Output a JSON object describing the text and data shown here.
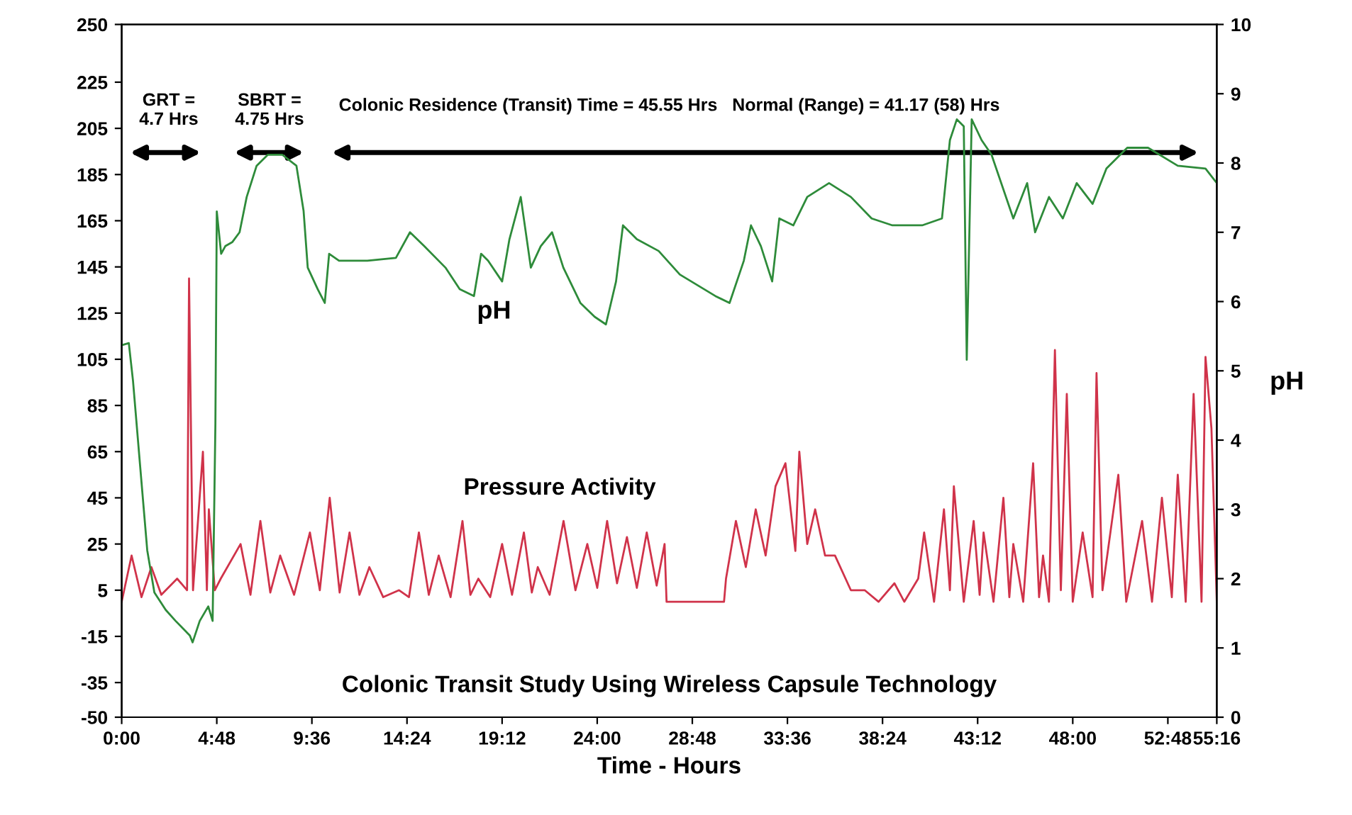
{
  "chart_data": {
    "type": "line",
    "xlabel": "Time - Hours",
    "y2label": "pH",
    "xlim": [
      0,
      55.27
    ],
    "ylim": [
      -50,
      250
    ],
    "y2lim": [
      0,
      10
    ],
    "xticks": [
      {
        "value": 0,
        "label": "0:00"
      },
      {
        "value": 4.8,
        "label": "4:48"
      },
      {
        "value": 9.6,
        "label": "9:36"
      },
      {
        "value": 14.4,
        "label": "14:24"
      },
      {
        "value": 19.2,
        "label": "19:12"
      },
      {
        "value": 24,
        "label": "24:00"
      },
      {
        "value": 28.8,
        "label": "28:48"
      },
      {
        "value": 33.6,
        "label": "33:36"
      },
      {
        "value": 38.4,
        "label": "38:24"
      },
      {
        "value": 43.2,
        "label": "43:12"
      },
      {
        "value": 48,
        "label": "48:00"
      },
      {
        "value": 52.8,
        "label": "52:48"
      },
      {
        "value": 55.27,
        "label": "55:16"
      }
    ],
    "yticks": [
      250,
      225,
      205,
      185,
      165,
      145,
      125,
      105,
      85,
      65,
      45,
      25,
      5,
      -15,
      -35,
      -50
    ],
    "y2ticks": [
      0,
      1,
      2,
      3,
      4,
      5,
      6,
      7,
      8,
      9,
      10
    ],
    "grid": false,
    "legend": false,
    "series": [
      {
        "color": "#d0334a",
        "axis": "y",
        "x": [
          0,
          0.5,
          1,
          1.5,
          2,
          2.8,
          3.3,
          3.4,
          3.6,
          4.1,
          4.3,
          4.4,
          4.7,
          5,
          6,
          6.5,
          7,
          7.5,
          8,
          8.7,
          9.5,
          10,
          10.5,
          11,
          11.5,
          12,
          12.5,
          13.2,
          14,
          14.5,
          15,
          15.5,
          16,
          16.6,
          17.2,
          17.6,
          18,
          18.6,
          19.2,
          19.7,
          20.3,
          20.7,
          21,
          21.6,
          22.3,
          22.9,
          23.5,
          24,
          24.5,
          25,
          25.5,
          26,
          26.5,
          27,
          27.4,
          27.5,
          30.4,
          30.5,
          31,
          31.5,
          32,
          32.5,
          33,
          33.5,
          34,
          34.2,
          34.6,
          35,
          35.5,
          36,
          36.8,
          37.5,
          38.2,
          39,
          39.5,
          40.2,
          40.5,
          41,
          41.5,
          41.8,
          42,
          42.5,
          43,
          43.3,
          43.5,
          44,
          44.5,
          44.8,
          45,
          45.5,
          46,
          46.3,
          46.5,
          46.8,
          47.1,
          47.4,
          47.7,
          48,
          48.5,
          49,
          49.2,
          49.5,
          50.3,
          50.7,
          51.5,
          52,
          52.5,
          53,
          53.3,
          53.7,
          54.1,
          54.5,
          54.7,
          55,
          55.27
        ],
        "values": [
          0,
          20,
          2,
          15,
          3,
          10,
          5,
          140,
          5,
          65,
          5,
          40,
          5,
          10,
          25,
          3,
          35,
          4,
          20,
          3,
          30,
          5,
          45,
          4,
          30,
          3,
          15,
          2,
          5,
          2,
          30,
          3,
          20,
          2,
          35,
          3,
          10,
          2,
          25,
          3,
          30,
          4,
          15,
          3,
          35,
          5,
          25,
          6,
          35,
          8,
          28,
          6,
          30,
          7,
          25,
          0,
          0,
          10,
          35,
          15,
          40,
          20,
          50,
          60,
          22,
          65,
          25,
          40,
          20,
          20,
          5,
          5,
          0,
          8,
          0,
          10,
          30,
          0,
          40,
          5,
          50,
          0,
          35,
          3,
          30,
          0,
          45,
          2,
          25,
          0,
          60,
          2,
          20,
          0,
          109,
          5,
          90,
          0,
          30,
          2,
          99,
          5,
          55,
          0,
          35,
          0,
          45,
          2,
          55,
          0,
          90,
          0,
          106,
          75,
          0
        ]
      },
      {
        "color": "#2e8b3a",
        "axis": "y2",
        "x": [
          0,
          0.36,
          0.57,
          0.93,
          1.29,
          1.65,
          2.22,
          2.72,
          3.44,
          3.58,
          3.94,
          4.37,
          4.59,
          4.73,
          4.8,
          5.02,
          5.23,
          5.59,
          5.95,
          6.31,
          6.81,
          7.38,
          8.1,
          8.82,
          9.18,
          9.39,
          9.89,
          10.25,
          10.47,
          10.97,
          12.4,
          13.84,
          14.55,
          15.27,
          16.34,
          17.06,
          17.78,
          18.14,
          18.49,
          19.2,
          19.57,
          20.14,
          20.65,
          21.15,
          21.72,
          22.29,
          23.15,
          23.87,
          24.44,
          24.95,
          25.3,
          26.0,
          27.1,
          28.17,
          29.96,
          30.68,
          31.4,
          31.76,
          32.26,
          32.83,
          33.19,
          33.9,
          34.6,
          35.7,
          36.8,
          37.85,
          38.9,
          40.4,
          41.4,
          41.8,
          42.15,
          42.5,
          42.65,
          42.9,
          43.4,
          43.9,
          45.0,
          45.7,
          46.1,
          46.8,
          47.5,
          48.2,
          49.0,
          49.7,
          50.75,
          51.8,
          53.3,
          54.7,
          55.27
        ],
        "values": [
          5.37,
          5.4,
          4.86,
          3.63,
          2.41,
          1.8,
          1.55,
          1.39,
          1.18,
          1.08,
          1.39,
          1.6,
          1.39,
          4.24,
          7.3,
          6.69,
          6.8,
          6.86,
          7.0,
          7.51,
          7.96,
          8.12,
          8.12,
          7.96,
          7.31,
          6.49,
          6.18,
          5.98,
          6.69,
          6.59,
          6.59,
          6.63,
          7.0,
          6.8,
          6.49,
          6.18,
          6.08,
          6.69,
          6.59,
          6.29,
          6.9,
          7.51,
          6.49,
          6.8,
          7.0,
          6.49,
          5.98,
          5.78,
          5.67,
          6.29,
          7.1,
          6.9,
          6.73,
          6.39,
          6.08,
          5.98,
          6.59,
          7.1,
          6.8,
          6.29,
          7.2,
          7.1,
          7.51,
          7.71,
          7.51,
          7.2,
          7.1,
          7.1,
          7.2,
          8.33,
          8.63,
          8.53,
          5.16,
          8.63,
          8.33,
          8.12,
          7.2,
          7.71,
          7.0,
          7.51,
          7.2,
          7.71,
          7.41,
          7.92,
          8.22,
          8.22,
          7.96,
          7.92,
          7.71
        ]
      }
    ],
    "annotations": [
      "GRT =\n4.7 Hrs",
      "SBRT =\n4.75 Hrs",
      "Colonic Residence (Transit) Time = 45.55 Hrs   Normal (Range) = 41.17 (58) Hrs",
      "pH",
      "Pressure Activity",
      "Colonic Transit Study Using Wireless Capsule Technology"
    ]
  }
}
